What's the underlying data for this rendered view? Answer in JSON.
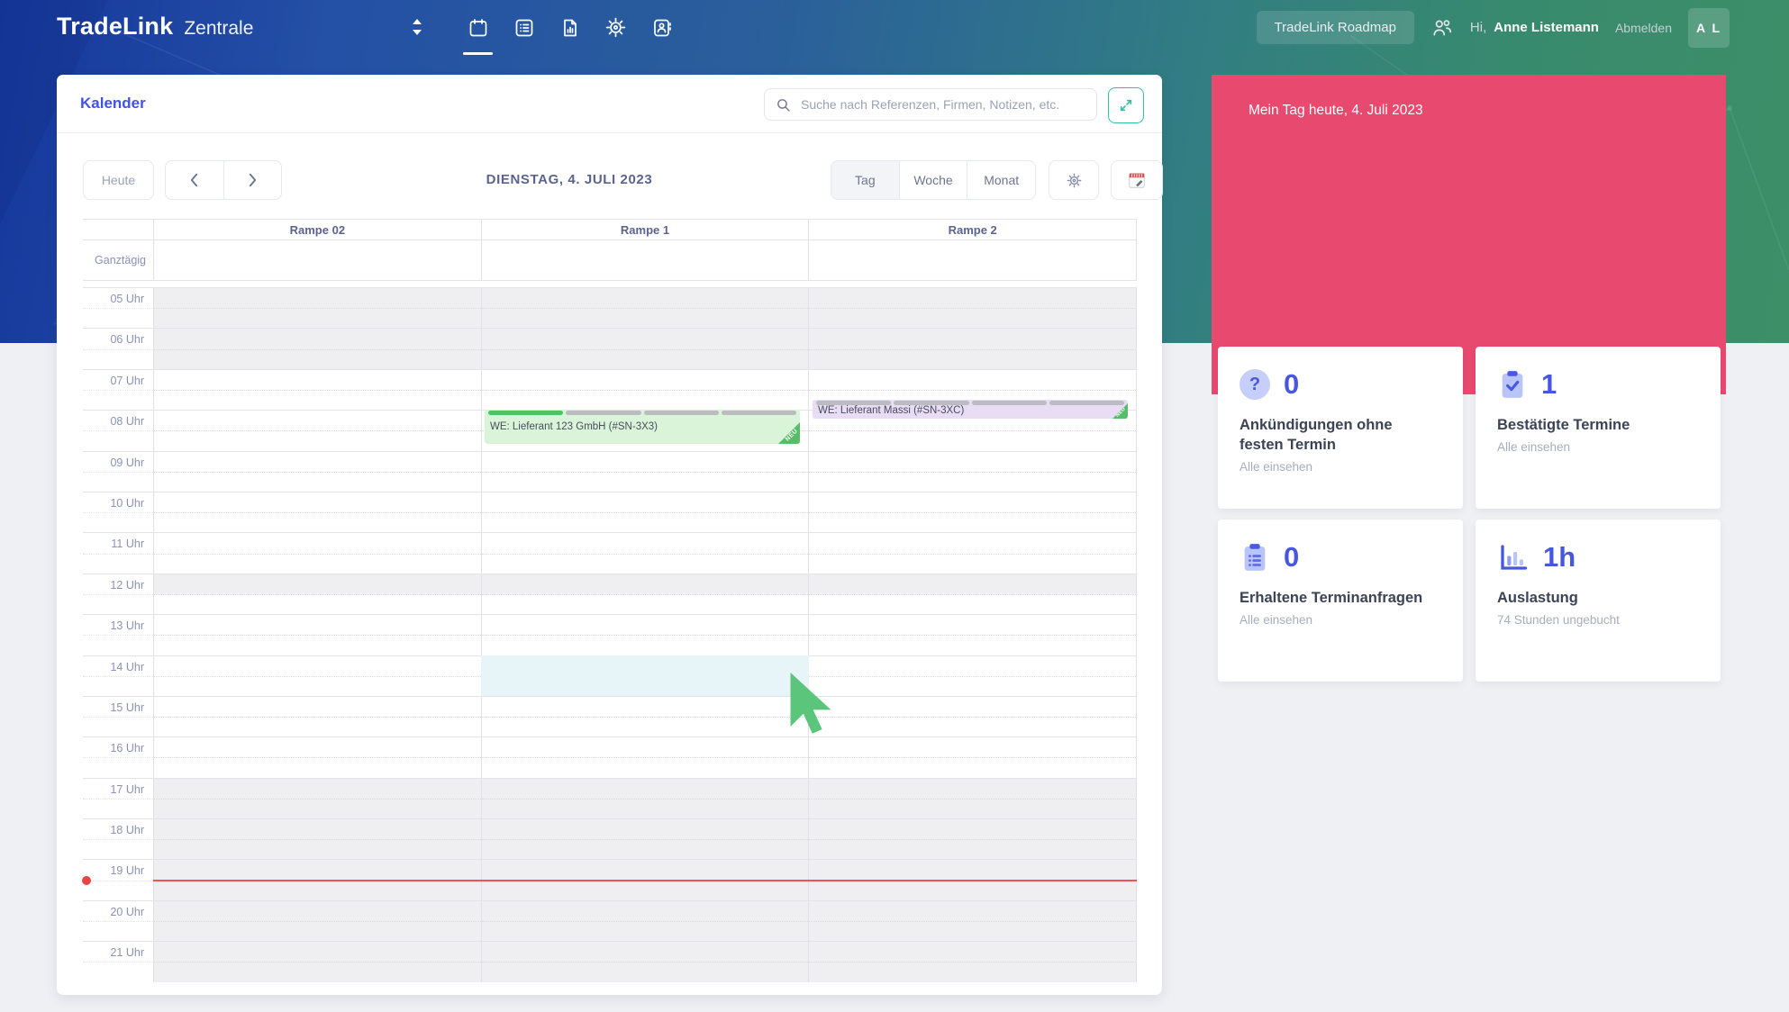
{
  "navbar": {
    "brand": "TradeLink",
    "brand_sub": "Zentrale",
    "roadmap_button": "TradeLink Roadmap",
    "greeting_prefix": "Hi,",
    "user_name": "Anne Listemann",
    "logout_label": "Abmelden",
    "avatar_initials": "A L"
  },
  "calendar": {
    "title": "Kalender",
    "search_placeholder": "Suche nach Referenzen, Firmen, Notizen, etc.",
    "today_button": "Heute",
    "date_title": "DIENSTAG, 4. JULI 2023",
    "view_tabs": [
      {
        "label": "Tag",
        "active": true
      },
      {
        "label": "Woche",
        "active": false
      },
      {
        "label": "Monat",
        "active": false
      }
    ],
    "allday_label": "Ganztägig",
    "columns": [
      "Rampe 02",
      "Rampe 1",
      "Rampe 2"
    ],
    "hours": [
      "05 Uhr",
      "06 Uhr",
      "07 Uhr",
      "08 Uhr",
      "09 Uhr",
      "10 Uhr",
      "11 Uhr",
      "12 Uhr",
      "13 Uhr",
      "14 Uhr",
      "15 Uhr",
      "16 Uhr",
      "17 Uhr",
      "18 Uhr",
      "19 Uhr",
      "20 Uhr",
      "21 Uhr"
    ],
    "closed_hours": [
      "05 Uhr",
      "06 Uhr",
      "17 Uhr",
      "18 Uhr",
      "19 Uhr",
      "20 Uhr",
      "21 Uhr"
    ],
    "half_closed_hours": [
      "12 Uhr"
    ],
    "events": [
      {
        "column": 1,
        "title": "WE: Lieferant 123 GmbH (#SN-3X3)",
        "start": "08:00",
        "end": "08:50",
        "bg": "#daf4da",
        "badge": "NEU",
        "progress_segments": 4,
        "progress_filled": 1
      },
      {
        "column": 2,
        "title": "WE: Lieferant Massi (#SN-3XC)",
        "start": "07:45",
        "end": "08:13",
        "bg": "#e9dcf5",
        "badge": "NEU",
        "progress_segments": 4,
        "progress_filled": 0
      }
    ],
    "hover_slot": {
      "column": 1,
      "start": "14:00",
      "end": "15:00"
    },
    "now_time": "19:30"
  },
  "sidebar": {
    "header": "Mein Tag heute, 4. Juli 2023",
    "cards": [
      {
        "icon": "question-icon",
        "value": "0",
        "title": "Ankündigungen ohne festen Termin",
        "link": "Alle einsehen"
      },
      {
        "icon": "clipboard-check-icon",
        "value": "1",
        "title": "Bestätigte Termine",
        "link": "Alle einsehen"
      },
      {
        "icon": "clipboard-list-icon",
        "value": "0",
        "title": "Erhaltene Terminanfragen",
        "link": "Alle einsehen"
      },
      {
        "icon": "bar-chart-icon",
        "value": "1h",
        "title": "Auslastung",
        "subtitle": "74 Stunden ungebucht"
      }
    ]
  },
  "colors": {
    "accent_indigo": "#4353e0",
    "pink": "#e84a6f",
    "teal": "#35bfa0",
    "event_green_bg": "#daf4da",
    "event_purple_bg": "#e9dcf5",
    "ribbon_green": "#58bd68",
    "progress_green": "#4fc360",
    "now_red": "#ef5350",
    "nav_gradient_left": "#15379d",
    "nav_gradient_right": "#3d8f68",
    "closed_slot_gray": "#efeff2",
    "hover_slot_cyan": "#e7f5f8"
  }
}
